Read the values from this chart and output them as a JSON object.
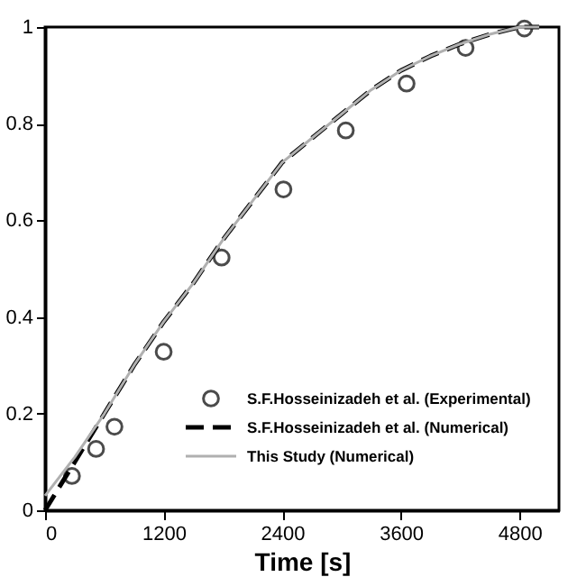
{
  "chart_data": {
    "type": "line",
    "xlabel": "Time [s]",
    "xlim": [
      0,
      5200
    ],
    "xticks": [
      0,
      1200,
      2400,
      3600,
      4800
    ],
    "ylim": [
      0,
      1
    ],
    "yticks": [
      0,
      0.2,
      0.4,
      0.6,
      0.8,
      1
    ],
    "grid": false,
    "legend": "bottom right",
    "series": [
      {
        "name": "S.F.Hosseinizadeh et al. (Experimental)",
        "type": "scatter",
        "marker": "circle",
        "color": "#000000",
        "x": [
          272,
          516,
          702,
          1200,
          1786,
          2412,
          3043,
          3658,
          4255,
          4850
        ],
        "values": [
          0.071,
          0.127,
          0.173,
          0.328,
          0.523,
          0.664,
          0.786,
          0.883,
          0.957,
          0.997
        ]
      },
      {
        "name": "S.F.Hosseinizadeh et al. (Numerical)",
        "line_style": "dashed",
        "color": "#000000",
        "x": [
          0,
          300,
          600,
          900,
          1200,
          1500,
          1800,
          2100,
          2400,
          2700,
          3000,
          3300,
          3600,
          3900,
          4200,
          4500,
          4800,
          5000
        ],
        "values": [
          0,
          0.1,
          0.2,
          0.3,
          0.39,
          0.47,
          0.56,
          0.64,
          0.72,
          0.77,
          0.82,
          0.87,
          0.91,
          0.94,
          0.965,
          0.985,
          1.0,
          1.0
        ]
      },
      {
        "name": "This Study (Numerical)",
        "line_style": "solid",
        "color": "#b0b0b0",
        "x": [
          0,
          300,
          600,
          900,
          1200,
          1500,
          1800,
          2100,
          2400,
          2700,
          3000,
          3300,
          3600,
          3900,
          4200,
          4500,
          4800,
          5000
        ],
        "values": [
          0.03,
          0.11,
          0.2,
          0.3,
          0.39,
          0.47,
          0.56,
          0.64,
          0.72,
          0.77,
          0.82,
          0.87,
          0.91,
          0.94,
          0.965,
          0.985,
          1.0,
          1.0
        ]
      }
    ]
  }
}
